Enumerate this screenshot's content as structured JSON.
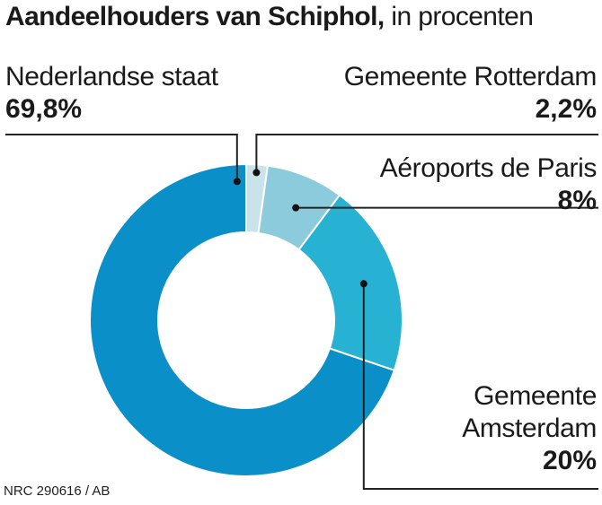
{
  "chart_data": {
    "type": "pie",
    "title": "Aandeelhouders van Schiphol,",
    "subtitle": "in procenten",
    "slices": [
      {
        "label": "Gemeente Rotterdam",
        "value_label": "2,2%",
        "value": 2.2,
        "color": "#c8e4ea"
      },
      {
        "label": "Aéroports de Paris",
        "value_label": "8%",
        "value": 8,
        "color": "#8ccbdc"
      },
      {
        "label": "Gemeente Amsterdam",
        "value_label": "20%",
        "value": 20,
        "color": "#27b2d3"
      },
      {
        "label": "Nederlandse staat",
        "value_label": "69,8%",
        "value": 69.8,
        "color": "#0b8fc8"
      }
    ]
  },
  "labels": {
    "nederlandse": {
      "name": "Nederlandse staat",
      "value": "69,8%"
    },
    "rotterdam": {
      "name": "Gemeente Rotterdam",
      "value": "2,2%"
    },
    "paris": {
      "name": "Aéroports de Paris",
      "value": "8%"
    },
    "amsterdam": {
      "line1": "Gemeente",
      "line2": "Amsterdam",
      "value": "20%"
    }
  },
  "source": "NRC 290616 / AB"
}
